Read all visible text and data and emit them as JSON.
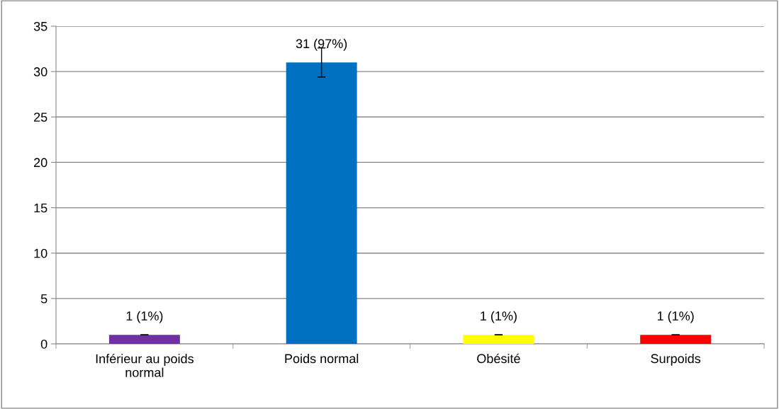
{
  "chart_data": {
    "type": "bar",
    "categories": [
      "Inférieur au poids\nnormal",
      "Poids normal",
      "Obésité",
      "Surpoids"
    ],
    "values": [
      1,
      31,
      1,
      1
    ],
    "colors": [
      "#7030a0",
      "#0070c0",
      "#ffff00",
      "#ff0000"
    ],
    "errors": [
      0,
      1.6,
      0,
      0
    ],
    "value_labels": [
      "1 (1%)",
      "31 (97%)",
      "1 (1%)",
      "1 (1%)"
    ],
    "ylim": [
      0,
      35
    ],
    "yticks": [
      0,
      5,
      10,
      15,
      20,
      25,
      30,
      35
    ],
    "grid": "y",
    "legend": false
  }
}
